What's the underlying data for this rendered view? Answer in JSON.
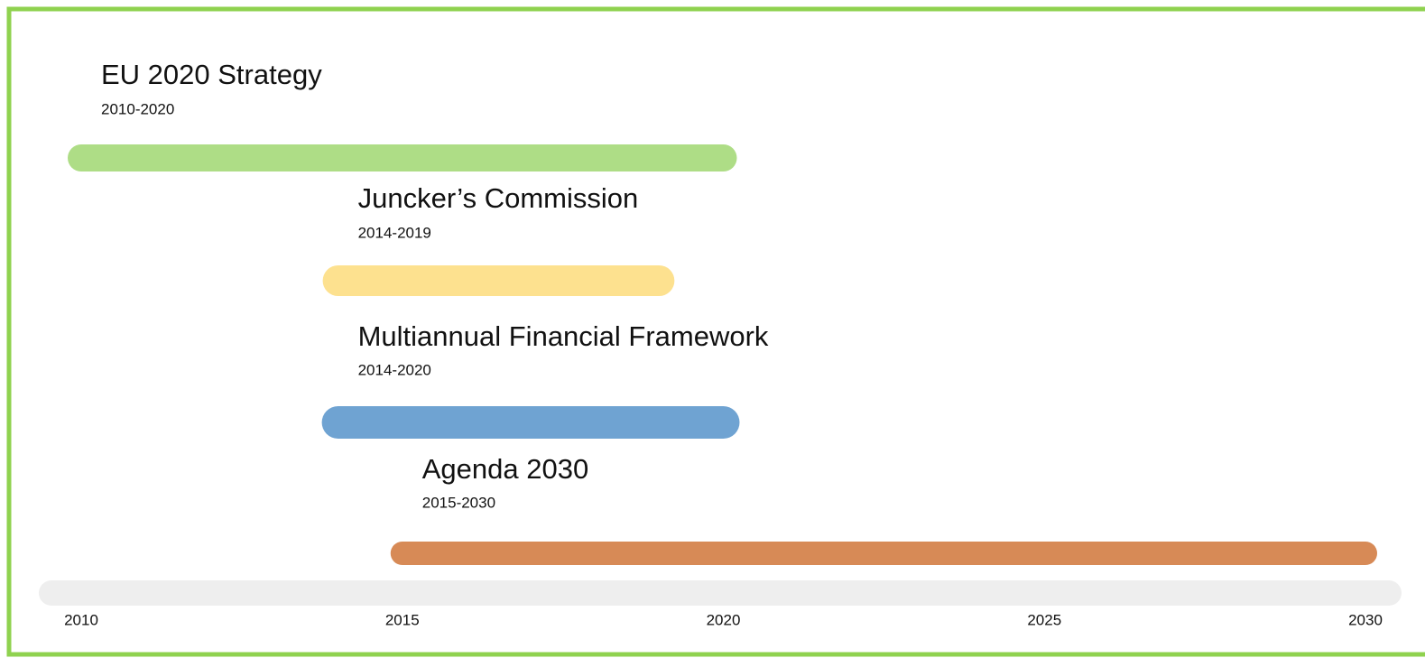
{
  "chart_data": {
    "type": "timeline",
    "items": [
      {
        "name": "EU 2020 Strategy",
        "period": "2010-2020",
        "start": 2010,
        "end": 2020,
        "color": "#aedd86"
      },
      {
        "name": "Juncker’s Commission",
        "period": "2014-2019",
        "start": 2014,
        "end": 2019,
        "color": "#fde18f"
      },
      {
        "name": "Multiannual Financial Framework",
        "period": "2014-2020",
        "start": 2014,
        "end": 2020,
        "color": "#6fa3d2"
      },
      {
        "name": "Agenda 2030",
        "period": "2015-2030",
        "start": 2015,
        "end": 2030,
        "color": "#d78a56"
      }
    ],
    "xlim": [
      2010,
      2030
    ],
    "xticks": [
      2010,
      2015,
      2020,
      2025,
      2030
    ]
  }
}
